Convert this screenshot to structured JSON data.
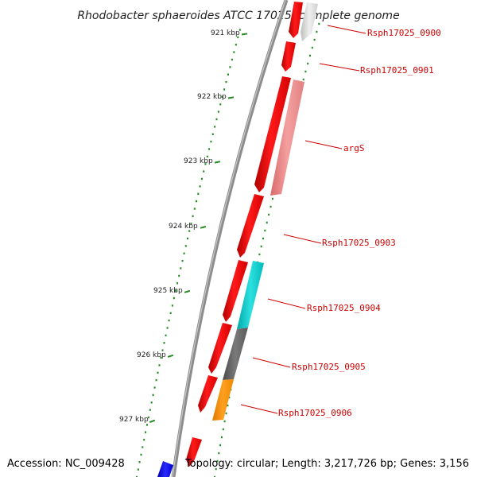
{
  "map": {
    "title": "Rhodobacter sphaeroides ATCC 17025, complete genome",
    "accession": "Accession: NC_009428",
    "topology": "Topology: circular; Length: 3,217,726 bp; Genes: 3,156"
  },
  "scale_ticks": [
    {
      "label": "921 kbp"
    },
    {
      "label": "922 kbp"
    },
    {
      "label": "923 kbp"
    },
    {
      "label": "924 kbp"
    },
    {
      "label": "925 kbp"
    },
    {
      "label": "926 kbp"
    },
    {
      "label": "927 kbp"
    }
  ],
  "genes": [
    {
      "label": "Rsph17025_0900"
    },
    {
      "label": "Rsph17025_0901"
    },
    {
      "label": "argS"
    },
    {
      "label": "Rsph17025_0903"
    },
    {
      "label": "Rsph17025_0904"
    },
    {
      "label": "Rsph17025_0905"
    },
    {
      "label": "Rsph17025_0906"
    }
  ],
  "colors": {
    "backbone": "#8c8c8c",
    "cds": "#ff0000",
    "label_text": "#cc0000",
    "tick": "#228b22",
    "dark_blue": "#0000ee"
  }
}
